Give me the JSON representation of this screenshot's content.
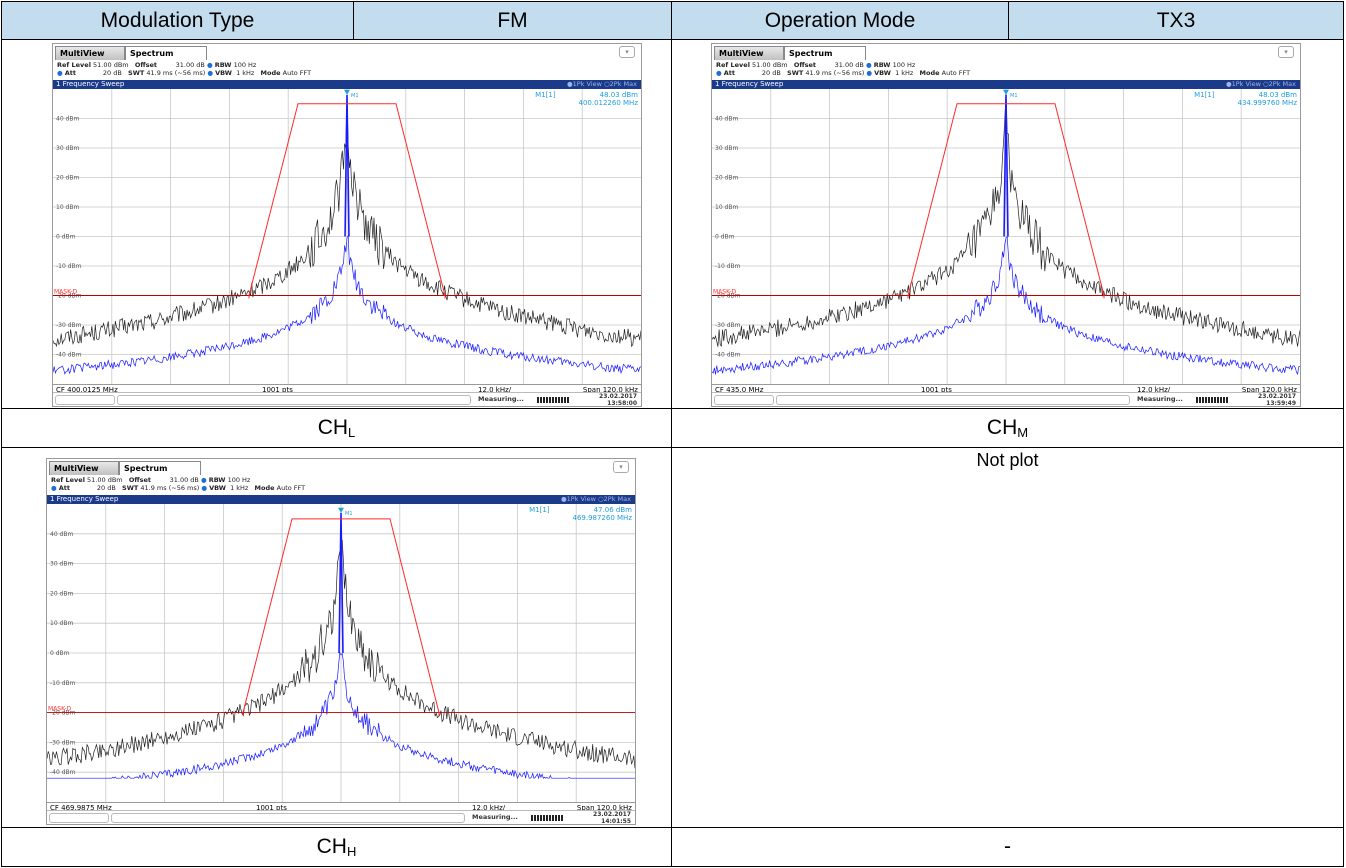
{
  "header": {
    "modulation_label": "Modulation Type",
    "modulation_value": "FM",
    "mode_label": "Operation Mode",
    "mode_value": "TX3"
  },
  "not_plot_text": "Not plot",
  "dash_text": "-",
  "colors": {
    "header_bg": "#c3dcee",
    "limit_line": "#ff2a2a",
    "mask_line": "#c00000",
    "trace1": "#1a1aff",
    "trace2": "#222222",
    "marker": "#1e9ee0"
  },
  "plots": [
    {
      "caption_main": "CH",
      "caption_sub": "L",
      "tab_multiview": "MultiView",
      "tab_spectrum": "Spectrum",
      "info1": {
        "ref_level_label": "Ref Level",
        "ref_level": "51.00 dBm",
        "offset_label": "Offset",
        "offset": "31.00 dB",
        "rbw_label": "RBW",
        "rbw": "100 Hz"
      },
      "info2": {
        "att_label": "Att",
        "att": "20 dB",
        "swt_label": "SWT",
        "swt": "41.9 ms (~56 ms)",
        "vbw_label": "VBW",
        "vbw": "1 kHz",
        "mode_label": "Mode",
        "mode": "Auto FFT"
      },
      "sweep_title": "1 Frequency Sweep",
      "traces_label": "●1Pk View  ○2Pk Max",
      "marker_name": "M1[1]",
      "marker_level": "48.03 dBm",
      "marker_freq": "400.012260 MHz",
      "marker_tag": "M1",
      "mask_label": "MASK-D",
      "cf": "CF 400.0125 MHz",
      "pts": "1001 pts",
      "div": "12.0 kHz/",
      "span": "Span 120.0 kHz",
      "measuring": "Measuring...",
      "date": "23.02.2017",
      "time": "13:58:00"
    },
    {
      "caption_main": "CH",
      "caption_sub": "M",
      "tab_multiview": "MultiView",
      "tab_spectrum": "Spectrum",
      "info1": {
        "ref_level_label": "Ref Level",
        "ref_level": "51.00 dBm",
        "offset_label": "Offset",
        "offset": "31.00 dB",
        "rbw_label": "RBW",
        "rbw": "100 Hz"
      },
      "info2": {
        "att_label": "Att",
        "att": "20 dB",
        "swt_label": "SWT",
        "swt": "41.9 ms (~56 ms)",
        "vbw_label": "VBW",
        "vbw": "1 kHz",
        "mode_label": "Mode",
        "mode": "Auto FFT"
      },
      "sweep_title": "1 Frequency Sweep",
      "traces_label": "●1Pk View  ○2Pk Max",
      "marker_name": "M1[1]",
      "marker_level": "48.03 dBm",
      "marker_freq": "434.999760 MHz",
      "marker_tag": "M1",
      "mask_label": "MASK-D",
      "cf": "CF 435.0 MHz",
      "pts": "1001 pts",
      "div": "12.0 kHz/",
      "span": "Span 120.0 kHz",
      "measuring": "Measuring...",
      "date": "23.02.2017",
      "time": "13:59:49"
    },
    {
      "caption_main": "CH",
      "caption_sub": "H",
      "tab_multiview": "MultiView",
      "tab_spectrum": "Spectrum",
      "info1": {
        "ref_level_label": "Ref Level",
        "ref_level": "51.00 dBm",
        "offset_label": "Offset",
        "offset": "31.00 dB",
        "rbw_label": "RBW",
        "rbw": "100 Hz"
      },
      "info2": {
        "att_label": "Att",
        "att": "20 dB",
        "swt_label": "SWT",
        "swt": "41.9 ms (~56 ms)",
        "vbw_label": "VBW",
        "vbw": "1 kHz",
        "mode_label": "Mode",
        "mode": "Auto FFT"
      },
      "sweep_title": "1 Frequency Sweep",
      "traces_label": "●1Pk View  ○2Pk Max",
      "marker_name": "M1[1]",
      "marker_level": "47.06 dBm",
      "marker_freq": "469.987260 MHz",
      "marker_tag": "M1",
      "mask_label": "MASK-D",
      "cf": "CF 469.9875 MHz",
      "pts": "1001 pts",
      "div": "12.0 kHz/",
      "span": "Span 120.0 kHz",
      "measuring": "Measuring...",
      "date": "23.02.2017",
      "time": "14:01:55"
    }
  ],
  "chart_data": [
    {
      "type": "line",
      "title": "1 Frequency Sweep",
      "x_unit": "kHz offset from CF",
      "xlim": [
        -60,
        60
      ],
      "ylim": [
        -50,
        50
      ],
      "y_ticks": [
        "40 dBm",
        "30 dBm",
        "20 dBm",
        "10 dBm",
        "0 dBm",
        "-10 dBm",
        "-20 dBm",
        "-30 dBm",
        "-40 dBm"
      ],
      "y_tick_values": [
        40,
        30,
        20,
        10,
        0,
        -10,
        -20,
        -30,
        -40
      ],
      "grid": true,
      "series": [
        {
          "name": "1Pk View",
          "peak_x": 0,
          "peak_y": 48,
          "floor_y": -50
        },
        {
          "name": "2Pk Max",
          "peak_x": 0,
          "peak_y": 0,
          "floor_y": -50
        }
      ],
      "limit_line": {
        "x": [
          -20,
          -20,
          -10,
          -10,
          10,
          10,
          20,
          20
        ],
        "y": [
          -21,
          -20,
          45,
          45,
          45,
          45,
          -20,
          -21
        ]
      },
      "mask_level": -20,
      "marker": {
        "x": 0,
        "y": 48.03
      }
    },
    {
      "type": "line",
      "title": "1 Frequency Sweep",
      "x_unit": "kHz offset from CF",
      "xlim": [
        -60,
        60
      ],
      "ylim": [
        -50,
        50
      ],
      "y_ticks": [
        "40 dBm",
        "30 dBm",
        "20 dBm",
        "10 dBm",
        "0 dBm",
        "-10 dBm",
        "-20 dBm",
        "-30 dBm",
        "-40 dBm"
      ],
      "y_tick_values": [
        40,
        30,
        20,
        10,
        0,
        -10,
        -20,
        -30,
        -40
      ],
      "grid": true,
      "series": [
        {
          "name": "1Pk View",
          "peak_x": 0,
          "peak_y": 48,
          "floor_y": -46
        },
        {
          "name": "2Pk Max",
          "peak_x": 0,
          "peak_y": 0,
          "floor_y": -48
        }
      ],
      "limit_line": {
        "x": [
          -20,
          -20,
          -10,
          -10,
          10,
          10,
          20,
          20
        ],
        "y": [
          -21,
          -20,
          45,
          45,
          45,
          45,
          -20,
          -21
        ]
      },
      "mask_level": -20,
      "marker": {
        "x": 0,
        "y": 48.03
      }
    },
    {
      "type": "line",
      "title": "1 Frequency Sweep",
      "x_unit": "kHz offset from CF",
      "xlim": [
        -60,
        60
      ],
      "ylim": [
        -50,
        50
      ],
      "y_ticks": [
        "40 dBm",
        "30 dBm",
        "20 dBm",
        "10 dBm",
        "0 dBm",
        "-10 dBm",
        "-20 dBm",
        "-30 dBm",
        "-40 dBm"
      ],
      "y_tick_values": [
        40,
        30,
        20,
        10,
        0,
        -10,
        -20,
        -30,
        -40
      ],
      "grid": true,
      "series": [
        {
          "name": "1Pk View",
          "peak_x": 0,
          "peak_y": 47,
          "floor_y": -42
        },
        {
          "name": "2Pk Max",
          "peak_x": 0,
          "peak_y": 0,
          "floor_y": -42
        }
      ],
      "limit_line": {
        "x": [
          -20,
          -20,
          -10,
          -10,
          10,
          10,
          20,
          20
        ],
        "y": [
          -21,
          -20,
          45,
          45,
          45,
          45,
          -20,
          -21
        ]
      },
      "mask_level": -20,
      "marker": {
        "x": 0,
        "y": 47.06
      }
    }
  ]
}
